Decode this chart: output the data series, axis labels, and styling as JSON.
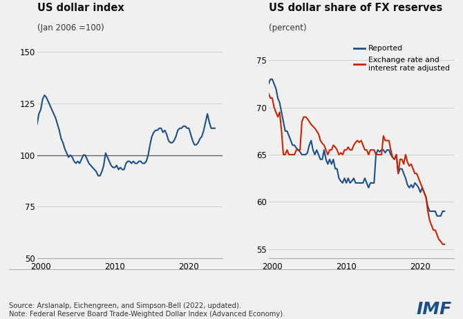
{
  "left_title": "US dollar index",
  "left_subtitle": "(Jan 2006 =100)",
  "right_title": "US dollar share of FX reserves",
  "right_subtitle": "(percent)",
  "left_ylim": [
    50,
    155
  ],
  "left_yticks": [
    50,
    75,
    100,
    125,
    150
  ],
  "right_ylim": [
    54,
    77
  ],
  "right_yticks": [
    55,
    60,
    65,
    70,
    75
  ],
  "xlim_left": [
    1999.5,
    2024.5
  ],
  "xlim_right": [
    1999.5,
    2024.5
  ],
  "xticks": [
    2000,
    2010,
    2020
  ],
  "source_text": "Source: Arslanalp, Eichengreen, and Simpson-Bell (2022, updated).\nNote: Federal Reserve Board Trade-Weighted Dollar Index (Advanced Economy).",
  "imf_text": "IMF",
  "line_color_blue": "#1a4f8a",
  "line_color_red": "#cc2200",
  "reference_line_value": 100,
  "background_color": "#f0f0f0",
  "grid_color": "#d0d0d0",
  "legend_labels": [
    "Reported",
    "Exchange rate and\ninterest rate adjusted"
  ],
  "dollar_index_years": [
    1999.0,
    1999.25,
    1999.5,
    1999.75,
    2000.0,
    2000.25,
    2000.5,
    2000.75,
    2001.0,
    2001.25,
    2001.5,
    2001.75,
    2002.0,
    2002.25,
    2002.5,
    2002.75,
    2003.0,
    2003.25,
    2003.5,
    2003.75,
    2004.0,
    2004.25,
    2004.5,
    2004.75,
    2005.0,
    2005.25,
    2005.5,
    2005.75,
    2006.0,
    2006.25,
    2006.5,
    2006.75,
    2007.0,
    2007.25,
    2007.5,
    2007.75,
    2008.0,
    2008.25,
    2008.5,
    2008.75,
    2009.0,
    2009.25,
    2009.5,
    2009.75,
    2010.0,
    2010.25,
    2010.5,
    2010.75,
    2011.0,
    2011.25,
    2011.5,
    2011.75,
    2012.0,
    2012.25,
    2012.5,
    2012.75,
    2013.0,
    2013.25,
    2013.5,
    2013.75,
    2014.0,
    2014.25,
    2014.5,
    2014.75,
    2015.0,
    2015.25,
    2015.5,
    2015.75,
    2016.0,
    2016.25,
    2016.5,
    2016.75,
    2017.0,
    2017.25,
    2017.5,
    2017.75,
    2018.0,
    2018.25,
    2018.5,
    2018.75,
    2019.0,
    2019.25,
    2019.5,
    2019.75,
    2020.0,
    2020.25,
    2020.5,
    2020.75,
    2021.0,
    2021.25,
    2021.5,
    2021.75,
    2022.0,
    2022.25,
    2022.5,
    2022.75,
    2023.0,
    2023.5
  ],
  "dollar_index_values": [
    113,
    112,
    115,
    120,
    122,
    127,
    129,
    128,
    126,
    124,
    122,
    120,
    118,
    115,
    112,
    108,
    106,
    103,
    101,
    99,
    100,
    99,
    97,
    96,
    97,
    96,
    98,
    100,
    100,
    98,
    96,
    95,
    94,
    93,
    92,
    90,
    90,
    92,
    95,
    101,
    99,
    97,
    95,
    94,
    94,
    95,
    93,
    94,
    93,
    93,
    96,
    97,
    97,
    96,
    97,
    96,
    96,
    97,
    97,
    96,
    96,
    97,
    100,
    105,
    109,
    111,
    112,
    112,
    113,
    113,
    111,
    112,
    110,
    107,
    106,
    106,
    107,
    109,
    112,
    113,
    113,
    114,
    114,
    113,
    113,
    110,
    107,
    105,
    105,
    106,
    108,
    109,
    112,
    116,
    120,
    116,
    113,
    113
  ],
  "fx_reported_years": [
    1999.0,
    1999.25,
    1999.5,
    1999.75,
    2000.0,
    2000.25,
    2000.5,
    2000.75,
    2001.0,
    2001.25,
    2001.5,
    2001.75,
    2002.0,
    2002.25,
    2002.5,
    2002.75,
    2003.0,
    2003.25,
    2003.5,
    2003.75,
    2004.0,
    2004.25,
    2004.5,
    2004.75,
    2005.0,
    2005.25,
    2005.5,
    2005.75,
    2006.0,
    2006.25,
    2006.5,
    2006.75,
    2007.0,
    2007.25,
    2007.5,
    2007.75,
    2008.0,
    2008.25,
    2008.5,
    2008.75,
    2009.0,
    2009.25,
    2009.5,
    2009.75,
    2010.0,
    2010.25,
    2010.5,
    2010.75,
    2011.0,
    2011.25,
    2011.5,
    2011.75,
    2012.0,
    2012.25,
    2012.5,
    2012.75,
    2013.0,
    2013.25,
    2013.5,
    2013.75,
    2014.0,
    2014.25,
    2014.5,
    2014.75,
    2015.0,
    2015.25,
    2015.5,
    2015.75,
    2016.0,
    2016.25,
    2016.5,
    2016.75,
    2017.0,
    2017.25,
    2017.5,
    2017.75,
    2018.0,
    2018.25,
    2018.5,
    2018.75,
    2019.0,
    2019.25,
    2019.5,
    2019.75,
    2020.0,
    2020.25,
    2020.5,
    2020.75,
    2021.0,
    2021.25,
    2021.5,
    2021.75,
    2022.0,
    2022.25,
    2022.5,
    2022.75,
    2023.0,
    2023.25
  ],
  "fx_reported_values": [
    71.5,
    72.0,
    72.5,
    73.0,
    73.0,
    72.5,
    72.0,
    71.0,
    70.5,
    69.5,
    68.5,
    67.5,
    67.5,
    67.0,
    66.5,
    66.0,
    66.0,
    65.7,
    65.5,
    65.3,
    65.0,
    65.0,
    65.0,
    65.2,
    66.0,
    66.5,
    65.5,
    65.0,
    65.5,
    65.0,
    64.5,
    64.5,
    65.5,
    64.5,
    64.0,
    64.5,
    64.0,
    64.5,
    63.5,
    63.5,
    62.5,
    62.2,
    62.0,
    62.5,
    62.0,
    62.5,
    62.0,
    62.2,
    62.5,
    62.0,
    62.0,
    62.0,
    62.0,
    62.0,
    62.5,
    62.0,
    61.5,
    62.0,
    62.0,
    62.0,
    65.0,
    65.5,
    65.3,
    65.5,
    65.5,
    65.2,
    65.5,
    65.5,
    65.0,
    64.7,
    64.5,
    65.0,
    63.0,
    63.5,
    63.5,
    63.0,
    62.5,
    61.8,
    61.5,
    61.8,
    61.5,
    62.0,
    61.8,
    61.5,
    61.0,
    61.5,
    61.0,
    60.5,
    59.5,
    59.0,
    59.0,
    59.0,
    59.0,
    58.5,
    58.5,
    58.5,
    59.0,
    59.0
  ],
  "fx_adjusted_years": [
    1999.0,
    1999.25,
    1999.5,
    1999.75,
    2000.0,
    2000.25,
    2000.5,
    2000.75,
    2001.0,
    2001.25,
    2001.5,
    2001.75,
    2002.0,
    2002.25,
    2002.5,
    2002.75,
    2003.0,
    2003.25,
    2003.5,
    2003.75,
    2004.0,
    2004.25,
    2004.5,
    2004.75,
    2005.0,
    2005.25,
    2005.5,
    2005.75,
    2006.0,
    2006.25,
    2006.5,
    2006.75,
    2007.0,
    2007.25,
    2007.5,
    2007.75,
    2008.0,
    2008.25,
    2008.5,
    2008.75,
    2009.0,
    2009.25,
    2009.5,
    2009.75,
    2010.0,
    2010.25,
    2010.5,
    2010.75,
    2011.0,
    2011.25,
    2011.5,
    2011.75,
    2012.0,
    2012.25,
    2012.5,
    2012.75,
    2013.0,
    2013.25,
    2013.5,
    2013.75,
    2014.0,
    2014.25,
    2014.5,
    2014.75,
    2015.0,
    2015.25,
    2015.5,
    2015.75,
    2016.0,
    2016.25,
    2016.5,
    2016.75,
    2017.0,
    2017.25,
    2017.5,
    2017.75,
    2018.0,
    2018.25,
    2018.5,
    2018.75,
    2019.0,
    2019.25,
    2019.5,
    2019.75,
    2020.0,
    2020.25,
    2020.5,
    2020.75,
    2021.0,
    2021.25,
    2021.5,
    2021.75,
    2022.0,
    2022.25,
    2022.5,
    2022.75,
    2023.0,
    2023.25
  ],
  "fx_adjusted_values": [
    71.0,
    71.5,
    71.5,
    71.0,
    71.0,
    70.0,
    69.5,
    69.0,
    69.5,
    67.5,
    65.0,
    65.0,
    65.5,
    65.0,
    65.0,
    65.0,
    65.0,
    65.5,
    65.5,
    65.5,
    68.5,
    69.0,
    69.0,
    68.8,
    68.5,
    68.2,
    68.0,
    67.8,
    67.5,
    67.2,
    66.5,
    66.2,
    66.0,
    65.5,
    65.0,
    65.5,
    65.5,
    66.0,
    65.8,
    65.5,
    65.0,
    65.2,
    65.0,
    65.5,
    65.5,
    65.8,
    65.5,
    65.5,
    66.0,
    66.3,
    66.5,
    66.3,
    66.5,
    66.0,
    65.5,
    65.5,
    65.0,
    65.5,
    65.5,
    65.5,
    65.0,
    65.0,
    65.0,
    65.0,
    67.0,
    66.5,
    66.5,
    66.5,
    65.5,
    64.7,
    64.5,
    65.0,
    63.0,
    64.5,
    64.5,
    64.0,
    65.0,
    64.2,
    63.8,
    64.0,
    63.5,
    63.0,
    63.0,
    62.5,
    62.0,
    61.5,
    61.0,
    60.5,
    59.0,
    58.0,
    57.5,
    57.0,
    57.0,
    56.5,
    56.0,
    55.8,
    55.5,
    55.5
  ]
}
